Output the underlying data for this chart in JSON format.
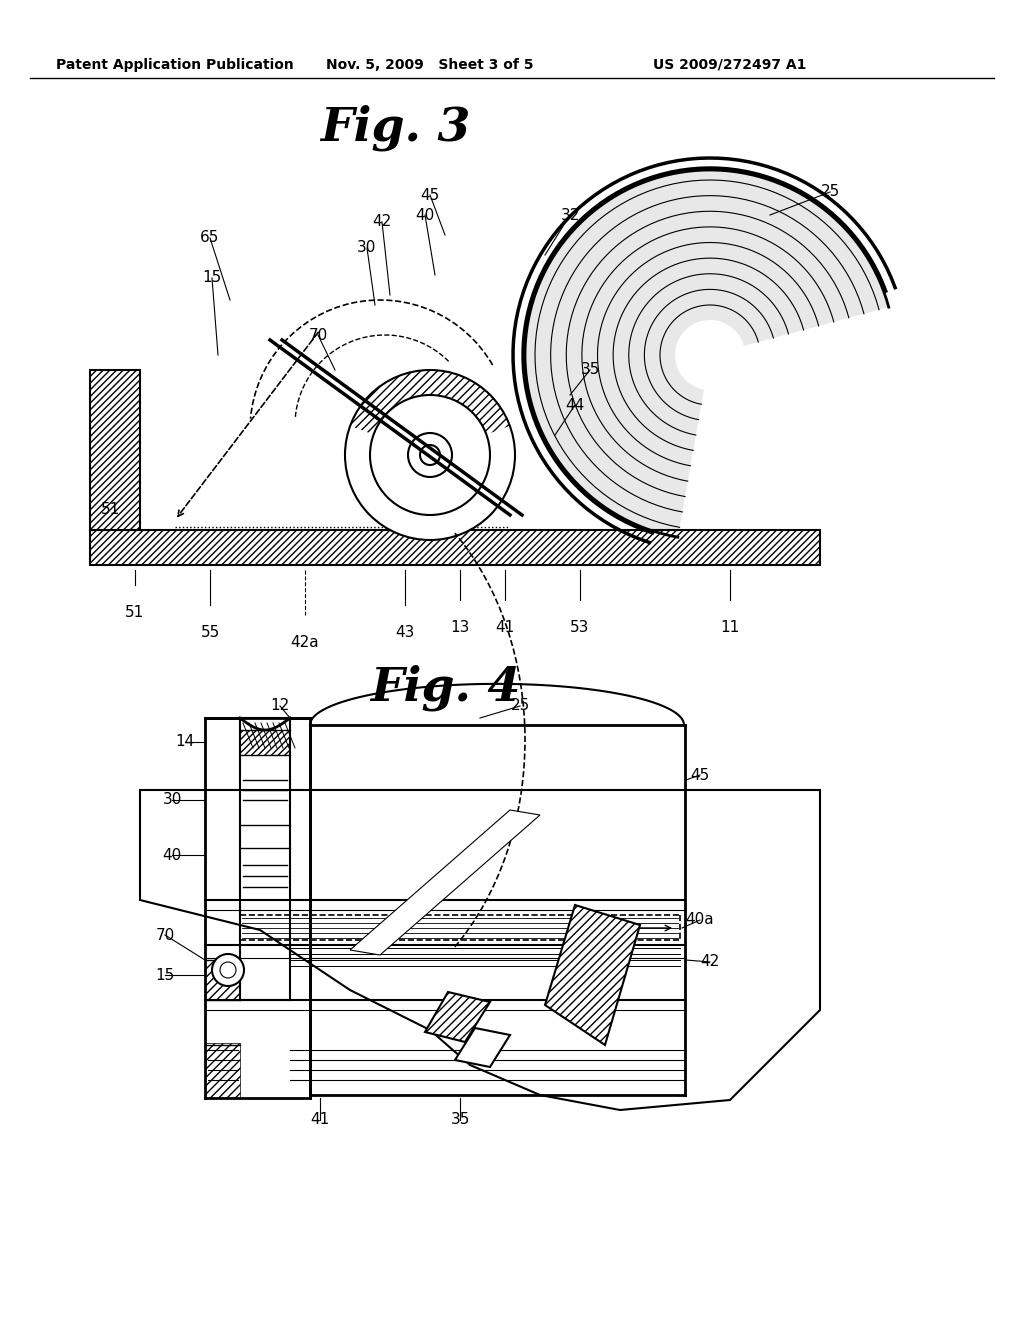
{
  "bg_color": "#ffffff",
  "header_left": "Patent Application Publication",
  "header_mid": "Nov. 5, 2009   Sheet 3 of 5",
  "header_right": "US 2009/272497 A1",
  "fig3_title": "Fig. 3",
  "fig4_title": "Fig. 4",
  "lc": "#000000"
}
